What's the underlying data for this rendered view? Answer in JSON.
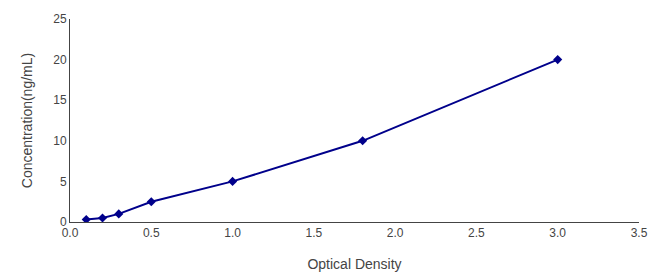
{
  "chart_data": {
    "type": "line",
    "x": [
      0.1,
      0.2,
      0.3,
      0.5,
      1.0,
      1.8,
      3.0
    ],
    "values": [
      0.3,
      0.5,
      1.0,
      2.5,
      5.0,
      10.0,
      20.0
    ],
    "color": "#00008B",
    "marker": "diamond",
    "line_style": "solid",
    "xlabel": "Optical Density",
    "ylabel": "Concentration(ng/mL)",
    "xlim": [
      0,
      3.5
    ],
    "ylim": [
      0,
      25
    ],
    "xticks": [
      {
        "value": 0,
        "label": "0.0"
      },
      0.5,
      {
        "value": 1,
        "label": "1.0"
      },
      1.5,
      {
        "value": 2,
        "label": "2.0"
      },
      2.5,
      {
        "value": 3,
        "label": "3.0"
      },
      3.5
    ],
    "yticks": [
      0,
      5,
      10,
      15,
      20,
      25
    ],
    "grid": false
  }
}
